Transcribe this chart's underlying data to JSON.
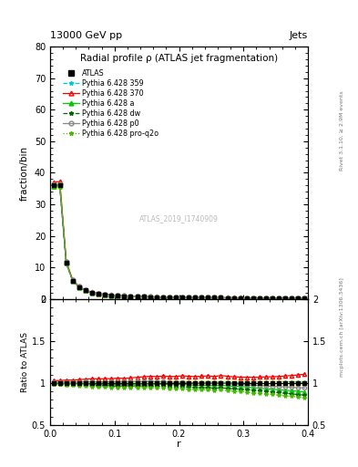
{
  "title_top": "13000 GeV pp",
  "title_top_right": "Jets",
  "plot_title": "Radial profile ρ (ATLAS jet fragmentation)",
  "ylabel_main": "fraction/bin",
  "ylabel_ratio": "Ratio to ATLAS",
  "xlabel": "r",
  "watermark": "ATLAS_2019_I1740909",
  "right_label_top": "Rivet 3.1.10, ≥ 2.9M events",
  "right_label_bottom": "mcplots.cern.ch [arXiv:1306.3436]",
  "ylim_main": [
    0,
    80
  ],
  "ylim_ratio": [
    0.5,
    2.0
  ],
  "xlim": [
    0.0,
    0.4
  ],
  "r_values": [
    0.005,
    0.015,
    0.025,
    0.035,
    0.045,
    0.055,
    0.065,
    0.075,
    0.085,
    0.095,
    0.105,
    0.115,
    0.125,
    0.135,
    0.145,
    0.155,
    0.165,
    0.175,
    0.185,
    0.195,
    0.205,
    0.215,
    0.225,
    0.235,
    0.245,
    0.255,
    0.265,
    0.275,
    0.285,
    0.295,
    0.305,
    0.315,
    0.325,
    0.335,
    0.345,
    0.355,
    0.365,
    0.375,
    0.385,
    0.395
  ],
  "atlas_data": [
    36.0,
    36.2,
    11.5,
    5.8,
    3.8,
    2.7,
    2.0,
    1.65,
    1.38,
    1.18,
    1.04,
    0.92,
    0.83,
    0.75,
    0.69,
    0.63,
    0.59,
    0.55,
    0.52,
    0.49,
    0.46,
    0.44,
    0.42,
    0.4,
    0.38,
    0.37,
    0.35,
    0.34,
    0.33,
    0.32,
    0.31,
    0.3,
    0.29,
    0.28,
    0.27,
    0.26,
    0.25,
    0.24,
    0.23,
    0.22
  ],
  "atlas_errors": [
    1.0,
    1.0,
    0.4,
    0.2,
    0.12,
    0.09,
    0.07,
    0.055,
    0.045,
    0.04,
    0.035,
    0.03,
    0.028,
    0.025,
    0.023,
    0.021,
    0.019,
    0.018,
    0.017,
    0.016,
    0.015,
    0.014,
    0.013,
    0.013,
    0.012,
    0.011,
    0.011,
    0.01,
    0.01,
    0.009,
    0.009,
    0.009,
    0.008,
    0.008,
    0.008,
    0.007,
    0.007,
    0.007,
    0.007,
    0.006
  ],
  "py359_data": [
    36.1,
    36.3,
    11.6,
    5.85,
    3.82,
    2.72,
    2.01,
    1.66,
    1.39,
    1.19,
    1.05,
    0.93,
    0.84,
    0.76,
    0.7,
    0.64,
    0.6,
    0.56,
    0.525,
    0.495,
    0.465,
    0.443,
    0.422,
    0.402,
    0.383,
    0.372,
    0.353,
    0.342,
    0.331,
    0.321,
    0.312,
    0.302,
    0.293,
    0.283,
    0.273,
    0.263,
    0.253,
    0.243,
    0.232,
    0.222
  ],
  "py370_data": [
    37.0,
    37.2,
    11.9,
    6.0,
    3.95,
    2.82,
    2.1,
    1.73,
    1.45,
    1.24,
    1.1,
    0.97,
    0.88,
    0.8,
    0.74,
    0.68,
    0.635,
    0.595,
    0.56,
    0.528,
    0.499,
    0.475,
    0.452,
    0.432,
    0.412,
    0.398,
    0.381,
    0.367,
    0.354,
    0.342,
    0.331,
    0.32,
    0.31,
    0.3,
    0.29,
    0.28,
    0.271,
    0.261,
    0.252,
    0.243
  ],
  "pya_data": [
    35.8,
    36.0,
    11.4,
    5.75,
    3.75,
    2.67,
    1.97,
    1.62,
    1.36,
    1.16,
    1.02,
    0.905,
    0.815,
    0.74,
    0.68,
    0.622,
    0.58,
    0.542,
    0.51,
    0.48,
    0.452,
    0.43,
    0.408,
    0.388,
    0.369,
    0.357,
    0.34,
    0.328,
    0.317,
    0.307,
    0.295,
    0.283,
    0.272,
    0.261,
    0.25,
    0.239,
    0.228,
    0.218,
    0.207,
    0.196
  ],
  "pydw_data": [
    35.6,
    35.8,
    11.3,
    5.7,
    3.72,
    2.64,
    1.95,
    1.6,
    1.34,
    1.14,
    1.0,
    0.89,
    0.8,
    0.725,
    0.665,
    0.609,
    0.567,
    0.529,
    0.497,
    0.468,
    0.44,
    0.418,
    0.397,
    0.377,
    0.359,
    0.347,
    0.33,
    0.318,
    0.307,
    0.296,
    0.285,
    0.274,
    0.263,
    0.252,
    0.241,
    0.23,
    0.219,
    0.209,
    0.198,
    0.188
  ],
  "pyp0_data": [
    36.3,
    36.5,
    11.65,
    5.88,
    3.84,
    2.74,
    2.03,
    1.67,
    1.4,
    1.2,
    1.055,
    0.935,
    0.843,
    0.763,
    0.701,
    0.642,
    0.598,
    0.558,
    0.524,
    0.494,
    0.464,
    0.441,
    0.42,
    0.399,
    0.38,
    0.368,
    0.351,
    0.338,
    0.326,
    0.315,
    0.303,
    0.292,
    0.281,
    0.27,
    0.259,
    0.249,
    0.238,
    0.228,
    0.217,
    0.207
  ],
  "pyproq2o_data": [
    35.4,
    35.6,
    11.2,
    5.65,
    3.68,
    2.61,
    1.92,
    1.58,
    1.32,
    1.12,
    0.985,
    0.872,
    0.785,
    0.711,
    0.652,
    0.597,
    0.555,
    0.518,
    0.486,
    0.457,
    0.43,
    0.408,
    0.387,
    0.368,
    0.35,
    0.338,
    0.321,
    0.309,
    0.298,
    0.288,
    0.276,
    0.265,
    0.254,
    0.244,
    0.233,
    0.222,
    0.212,
    0.202,
    0.191,
    0.181
  ],
  "colors": {
    "py359": "#00CCCC",
    "py370": "#FF0000",
    "pya": "#00CC00",
    "pydw": "#006600",
    "pyp0": "#888888",
    "pyproq2o": "#44BB00"
  },
  "atlas_band_color": "#FFFF99",
  "atlas_band_alpha": 0.9
}
